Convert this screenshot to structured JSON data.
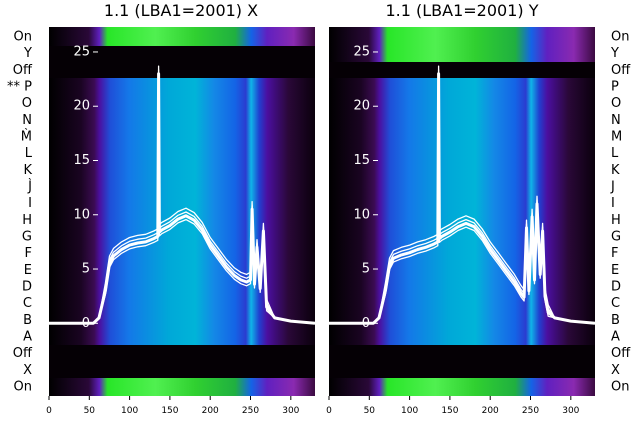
{
  "chart_data": [
    {
      "type": "heatmap",
      "title": "1.1 (LBA1=2001) X",
      "xlabel": "",
      "ylabel": "",
      "xlim": [
        0,
        330
      ],
      "ylim": [
        -6.7,
        27.3
      ],
      "x_ticks": [
        0,
        50,
        100,
        150,
        200,
        250,
        300
      ],
      "y_ticks": [
        0,
        5,
        10,
        15,
        20,
        25
      ],
      "row_labels": [
        "On",
        "Y",
        "Off",
        "** P",
        "O",
        "N",
        "M̀",
        "L",
        "K",
        "J̀",
        "I",
        "H",
        "G",
        "F",
        "E",
        "D",
        "C",
        "B",
        "A",
        "Off",
        "X",
        "On"
      ],
      "series": [
        {
          "x": [
            0,
            55,
            62,
            70,
            75,
            80,
            90,
            100,
            110,
            120,
            130,
            135,
            136,
            137,
            140,
            150,
            160,
            170,
            180,
            190,
            200,
            210,
            220,
            230,
            238,
            245,
            250,
            252,
            255,
            258,
            262,
            266,
            270,
            280,
            300,
            330
          ],
          "values": [
            0,
            0,
            0.5,
            3,
            5.5,
            6.2,
            6.8,
            7.2,
            7.4,
            7.5,
            7.8,
            8.0,
            23.0,
            8.4,
            8.6,
            9.0,
            9.6,
            9.9,
            9.5,
            8.6,
            7.2,
            6.2,
            5.2,
            4.4,
            4.0,
            3.8,
            4.0,
            10.5,
            3.6,
            7.0,
            3.2,
            8.5,
            1.5,
            0.5,
            0.2,
            0
          ]
        }
      ],
      "grid": false,
      "legend": "none"
    },
    {
      "type": "heatmap",
      "title": "1.1 (LBA1=2001) Y",
      "xlabel": "",
      "ylabel": "",
      "xlim": [
        0,
        330
      ],
      "ylim": [
        -6.7,
        27.3
      ],
      "x_ticks": [
        0,
        50,
        100,
        150,
        200,
        250,
        300
      ],
      "y_ticks": [
        0,
        5,
        10,
        15,
        20,
        25
      ],
      "row_labels": [
        "On",
        "Y",
        "Off",
        "P",
        "O",
        "N",
        "M",
        "L",
        "K",
        "J",
        "I",
        "H",
        "G",
        "F",
        "E",
        "D",
        "C",
        "B",
        "A",
        "Off",
        "X",
        "On"
      ],
      "series": [
        {
          "x": [
            0,
            55,
            62,
            70,
            75,
            80,
            90,
            100,
            110,
            120,
            130,
            135,
            136,
            137,
            140,
            150,
            160,
            170,
            180,
            190,
            200,
            210,
            220,
            230,
            238,
            242,
            245,
            248,
            252,
            255,
            258,
            262,
            265,
            268,
            272,
            280,
            300,
            330
          ],
          "values": [
            0,
            0,
            0.5,
            3,
            5.3,
            6.0,
            6.3,
            6.5,
            6.8,
            7.0,
            7.3,
            7.5,
            23.0,
            7.8,
            8.0,
            8.4,
            8.9,
            9.2,
            8.9,
            8.0,
            6.8,
            5.8,
            4.8,
            3.8,
            2.8,
            2.4,
            8.8,
            3.0,
            9.8,
            4.0,
            11.0,
            4.5,
            8.5,
            2.5,
            1.0,
            0.5,
            0.2,
            0
          ]
        }
      ],
      "grid": false,
      "legend": "none"
    }
  ],
  "colors": {
    "edge": "#000000",
    "off_band": "#050005",
    "low": "#3b0b52",
    "violet": "#4b0fa0",
    "blue": "#1464e6",
    "cyan": "#00b4d8",
    "green": "#28e628",
    "trace": "#ffffff"
  }
}
